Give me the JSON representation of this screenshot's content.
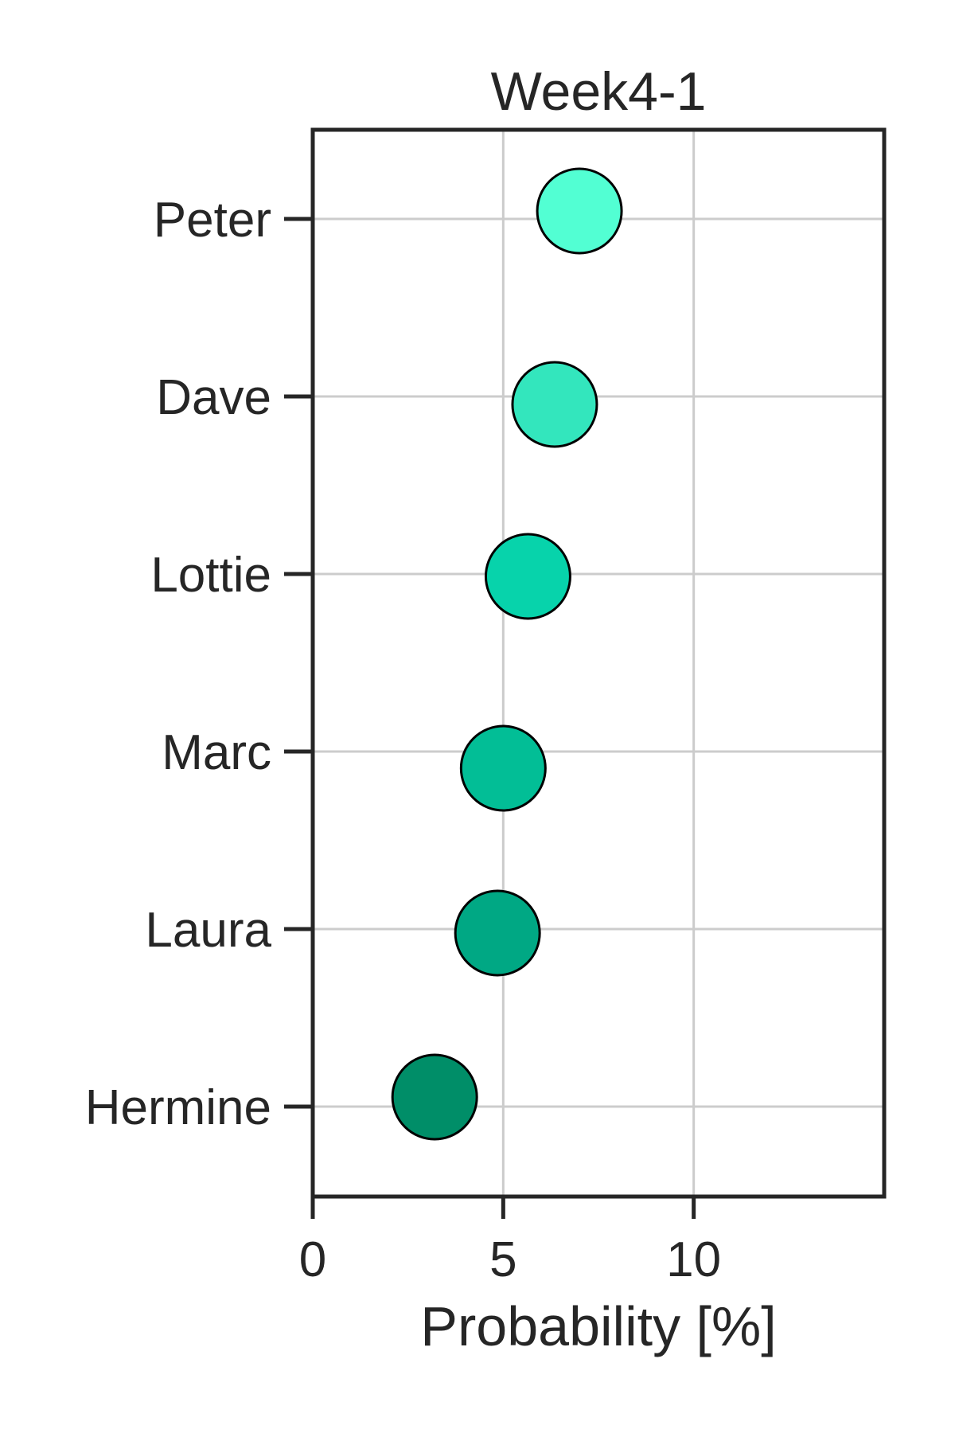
{
  "chart_data": {
    "type": "scatter",
    "title": "Week4-1",
    "xlabel": "Probability [%]",
    "ylabel": "",
    "xlim": [
      0,
      15
    ],
    "xticks": [
      0,
      5,
      10
    ],
    "grid": true,
    "categories": [
      "Peter",
      "Dave",
      "Lottie",
      "Marc",
      "Laura",
      "Hermine"
    ],
    "values": [
      7.0,
      6.35,
      5.65,
      5.0,
      4.85,
      3.2
    ],
    "colors": [
      "#52FFD3",
      "#33E6BD",
      "#07D3AB",
      "#02BE96",
      "#00A884",
      "#008E68"
    ]
  }
}
